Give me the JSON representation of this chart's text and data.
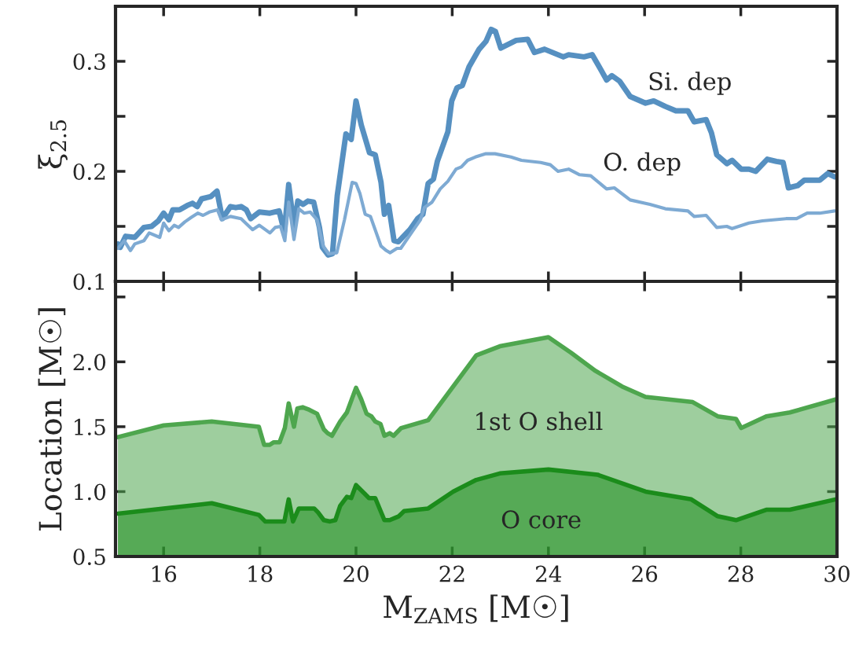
{
  "chart_data": [
    {
      "type": "line",
      "ylabel": "ξ$_{2.5}$",
      "xlim": [
        15,
        30
      ],
      "ylim": [
        0.1,
        0.35
      ],
      "xticks": [
        16,
        18,
        20,
        22,
        24,
        26,
        28,
        30
      ],
      "yticks": [
        0.1,
        {
          "value": 0.15,
          "label": null
        },
        0.2,
        {
          "value": 0.25,
          "label": null
        },
        0.3
      ],
      "tick_labels": "y",
      "grid": false,
      "legend": false,
      "series": [
        {
          "color": "#5690c1",
          "x": [
            15.05,
            15.1,
            15.21,
            15.4,
            15.59,
            15.75,
            15.89,
            16.0,
            16.11,
            16.19,
            16.33,
            16.49,
            16.6,
            16.7,
            16.79,
            16.98,
            17.11,
            17.22,
            17.39,
            17.5,
            17.61,
            17.72,
            17.81,
            17.99,
            18.21,
            18.4,
            18.51,
            18.6,
            18.71,
            18.79,
            18.9,
            19.0,
            19.12,
            19.24,
            19.3,
            19.42,
            19.51,
            19.61,
            19.79,
            19.9,
            20.0,
            20.11,
            20.28,
            20.4,
            20.52,
            20.59,
            20.68,
            20.79,
            20.88,
            21.12,
            21.28,
            21.39,
            21.5,
            21.61,
            21.69,
            21.91,
            21.99,
            22.1,
            22.21,
            22.35,
            22.56,
            22.7,
            22.81,
            22.9,
            23.01,
            23.33,
            23.57,
            23.71,
            23.92,
            24.31,
            24.42,
            24.74,
            24.91,
            25.07,
            25.21,
            25.32,
            25.48,
            25.7,
            26.02,
            26.19,
            26.43,
            26.65,
            26.9,
            27.03,
            27.28,
            27.39,
            27.5,
            27.71,
            27.82,
            28.01,
            28.17,
            28.31,
            28.55,
            28.74,
            28.88,
            28.99,
            29.18,
            29.32,
            29.64,
            29.81,
            29.95
          ],
          "values": [
            0.134,
            0.131,
            0.141,
            0.14,
            0.149,
            0.15,
            0.155,
            0.162,
            0.156,
            0.165,
            0.165,
            0.169,
            0.171,
            0.168,
            0.175,
            0.177,
            0.182,
            0.157,
            0.168,
            0.167,
            0.168,
            0.165,
            0.157,
            0.163,
            0.162,
            0.164,
            0.145,
            0.188,
            0.15,
            0.173,
            0.17,
            0.173,
            0.172,
            0.149,
            0.131,
            0.124,
            0.125,
            0.178,
            0.234,
            0.229,
            0.264,
            0.242,
            0.217,
            0.215,
            0.19,
            0.161,
            0.169,
            0.137,
            0.136,
            0.147,
            0.157,
            0.161,
            0.189,
            0.193,
            0.209,
            0.236,
            0.264,
            0.276,
            0.278,
            0.295,
            0.311,
            0.318,
            0.329,
            0.327,
            0.312,
            0.319,
            0.32,
            0.308,
            0.311,
            0.304,
            0.306,
            0.304,
            0.306,
            0.294,
            0.283,
            0.287,
            0.282,
            0.268,
            0.262,
            0.264,
            0.259,
            0.255,
            0.255,
            0.245,
            0.247,
            0.235,
            0.215,
            0.207,
            0.21,
            0.202,
            0.202,
            0.2,
            0.211,
            0.209,
            0.208,
            0.185,
            0.187,
            0.192,
            0.192,
            0.198,
            0.195
          ]
        },
        {
          "color": "#7eaad3",
          "x": [
            15.05,
            15.18,
            15.31,
            15.4,
            15.59,
            15.7,
            15.92,
            16.0,
            16.11,
            16.22,
            16.31,
            16.44,
            16.57,
            16.71,
            16.82,
            16.95,
            17.12,
            17.2,
            17.39,
            17.61,
            17.85,
            17.99,
            18.21,
            18.32,
            18.43,
            18.52,
            18.6,
            18.71,
            18.81,
            18.92,
            19.05,
            19.19,
            19.32,
            19.43,
            19.6,
            19.76,
            19.92,
            20.0,
            20.08,
            20.19,
            20.3,
            20.52,
            20.63,
            20.71,
            20.85,
            20.93,
            21.15,
            21.34,
            21.42,
            21.58,
            21.75,
            21.91,
            22.08,
            22.19,
            22.32,
            22.48,
            22.7,
            22.89,
            23.22,
            23.44,
            23.84,
            24.04,
            24.2,
            24.42,
            24.64,
            24.88,
            25.21,
            25.37,
            25.7,
            26.11,
            26.43,
            26.9,
            27.03,
            27.28,
            27.5,
            27.71,
            27.82,
            28.17,
            28.45,
            28.94,
            29.16,
            29.38,
            29.64,
            29.95
          ],
          "values": [
            0.13,
            0.137,
            0.128,
            0.134,
            0.137,
            0.144,
            0.14,
            0.153,
            0.146,
            0.151,
            0.149,
            0.154,
            0.158,
            0.162,
            0.16,
            0.163,
            0.165,
            0.156,
            0.159,
            0.157,
            0.147,
            0.151,
            0.144,
            0.149,
            0.15,
            0.137,
            0.172,
            0.138,
            0.166,
            0.162,
            0.163,
            0.156,
            0.132,
            0.125,
            0.126,
            0.156,
            0.19,
            0.189,
            0.18,
            0.161,
            0.159,
            0.132,
            0.128,
            0.126,
            0.13,
            0.13,
            0.144,
            0.156,
            0.167,
            0.172,
            0.184,
            0.191,
            0.202,
            0.204,
            0.21,
            0.213,
            0.216,
            0.216,
            0.213,
            0.21,
            0.208,
            0.206,
            0.2,
            0.202,
            0.197,
            0.196,
            0.184,
            0.185,
            0.174,
            0.17,
            0.166,
            0.164,
            0.159,
            0.16,
            0.149,
            0.15,
            0.148,
            0.153,
            0.155,
            0.157,
            0.157,
            0.162,
            0.162,
            0.164
          ]
        }
      ],
      "annotations": [
        "Si. dep",
        "O. dep"
      ]
    },
    {
      "type": "area",
      "xlabel": "M$_{ZAMS}$ [M☉]",
      "ylabel": "Location [M☉]",
      "xlim": [
        15,
        30
      ],
      "ylim": [
        0.5,
        2.62
      ],
      "xticks": [
        16,
        18,
        20,
        22,
        24,
        26,
        28,
        30
      ],
      "yticks": [
        0.5,
        {
          "value": 1,
          "label": "1.0"
        },
        1.5,
        {
          "value": 2,
          "label": "2.0"
        },
        {
          "value": 2.5,
          "label": null
        }
      ],
      "grid": false,
      "legend": false,
      "series": [
        {
          "color": "#4ea64e",
          "x": [
            15.05,
            16.0,
            17.0,
            17.98,
            18.09,
            18.2,
            18.29,
            18.41,
            18.52,
            18.6,
            18.71,
            18.78,
            18.89,
            19.03,
            19.19,
            19.33,
            19.41,
            19.5,
            19.67,
            19.81,
            20.0,
            20.11,
            20.22,
            20.32,
            20.4,
            20.51,
            20.59,
            20.7,
            20.78,
            20.94,
            21.5,
            22.5,
            22.99,
            24.0,
            24.47,
            24.98,
            25.53,
            26.02,
            27.0,
            27.52,
            27.9,
            28.01,
            28.53,
            29.02,
            29.97
          ],
          "values": [
            1.42,
            1.51,
            1.54,
            1.5,
            1.36,
            1.36,
            1.38,
            1.38,
            1.49,
            1.68,
            1.5,
            1.64,
            1.65,
            1.63,
            1.6,
            1.48,
            1.45,
            1.43,
            1.54,
            1.61,
            1.8,
            1.71,
            1.6,
            1.58,
            1.54,
            1.52,
            1.43,
            1.45,
            1.43,
            1.49,
            1.55,
            2.05,
            2.12,
            2.19,
            2.07,
            1.93,
            1.81,
            1.73,
            1.69,
            1.58,
            1.56,
            1.49,
            1.58,
            1.61,
            1.71
          ]
        },
        {
          "color": "#1b8c1b",
          "x": [
            15.05,
            16.0,
            17.0,
            17.98,
            18.11,
            18.44,
            18.51,
            18.6,
            18.69,
            18.81,
            19.13,
            19.21,
            19.33,
            19.46,
            19.57,
            19.67,
            19.81,
            19.9,
            20.0,
            20.19,
            20.27,
            20.4,
            20.59,
            20.7,
            20.89,
            21.0,
            21.5,
            22.02,
            22.5,
            22.99,
            24.0,
            25.02,
            26.02,
            26.97,
            27.52,
            27.9,
            28.53,
            29.02,
            29.97
          ],
          "values": [
            0.83,
            0.87,
            0.91,
            0.82,
            0.77,
            0.77,
            0.77,
            0.94,
            0.77,
            0.87,
            0.87,
            0.84,
            0.78,
            0.77,
            0.78,
            0.89,
            0.96,
            0.95,
            1.05,
            0.98,
            0.95,
            0.95,
            0.78,
            0.78,
            0.81,
            0.85,
            0.87,
            1.0,
            1.09,
            1.14,
            1.17,
            1.13,
            1.0,
            0.94,
            0.81,
            0.78,
            0.86,
            0.86,
            0.94
          ]
        }
      ],
      "annotations": [
        "1st O shell",
        "O core"
      ]
    }
  ]
}
